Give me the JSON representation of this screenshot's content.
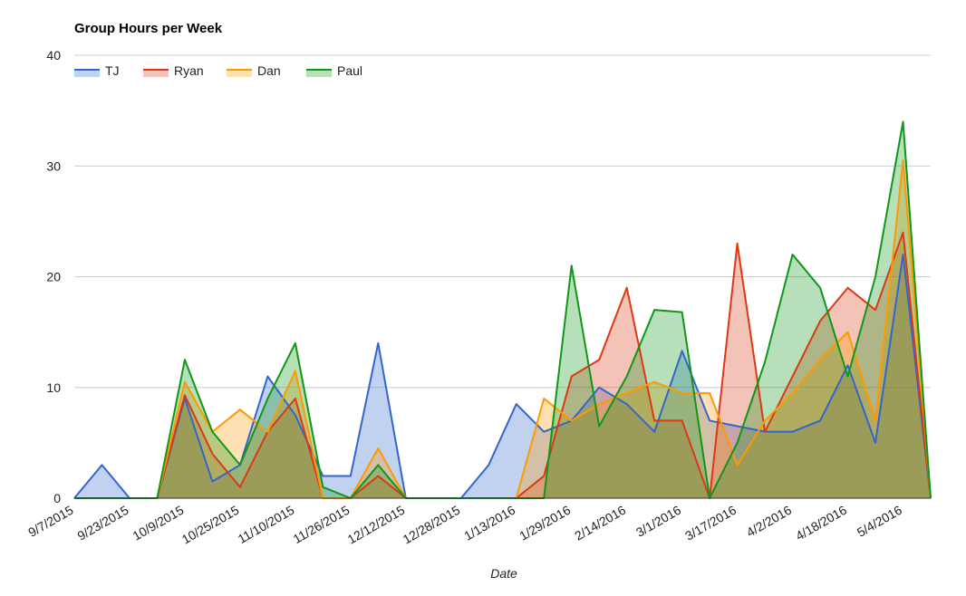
{
  "chart_data": {
    "type": "area",
    "title": "Group Hours per Week",
    "xlabel": "Date",
    "ylabel": "",
    "ylim": [
      0,
      40
    ],
    "yticks": [
      0,
      10,
      20,
      30,
      40
    ],
    "grid": true,
    "legend_position": "top-left",
    "x_tick_labels": [
      "9/7/2015",
      "9/23/2015",
      "10/9/2015",
      "10/25/2015",
      "11/10/2015",
      "11/26/2015",
      "12/12/2015",
      "12/28/2015",
      "1/13/2016",
      "1/29/2016",
      "2/14/2016",
      "3/1/2016",
      "3/17/2016",
      "4/2/2016",
      "4/18/2016",
      "5/4/2016"
    ],
    "x": [
      "9/7/2015",
      "9/15/2015",
      "9/23/2015",
      "10/1/2015",
      "10/9/2015",
      "10/17/2015",
      "10/25/2015",
      "11/2/2015",
      "11/10/2015",
      "11/18/2015",
      "11/26/2015",
      "12/4/2015",
      "12/12/2015",
      "12/20/2015",
      "12/28/2015",
      "1/5/2016",
      "1/13/2016",
      "1/21/2016",
      "1/29/2016",
      "2/6/2016",
      "2/14/2016",
      "2/22/2016",
      "3/1/2016",
      "3/9/2016",
      "3/17/2016",
      "3/25/2016",
      "4/2/2016",
      "4/10/2016",
      "4/18/2016",
      "4/26/2016",
      "5/4/2016",
      "5/12/2016"
    ],
    "series": [
      {
        "name": "TJ",
        "color": "#3366cc",
        "values": [
          0,
          3,
          0,
          0,
          9,
          1.5,
          3,
          11,
          7.5,
          2,
          2,
          14,
          0,
          0,
          0,
          3,
          8.5,
          6,
          7,
          10,
          8.5,
          6,
          13.3,
          7,
          6.5,
          6,
          6,
          7,
          12,
          5,
          22,
          0
        ]
      },
      {
        "name": "Ryan",
        "color": "#dc3912",
        "values": [
          0,
          0,
          0,
          0,
          9.3,
          4,
          1,
          6,
          9,
          0,
          0,
          2,
          0,
          0,
          0,
          0,
          0,
          2,
          11,
          12.5,
          19,
          7,
          7,
          0,
          23,
          6,
          11,
          16,
          19,
          17,
          24,
          0
        ]
      },
      {
        "name": "Dan",
        "color": "#ff9900",
        "values": [
          0,
          0,
          0,
          0,
          10.5,
          6,
          8,
          6,
          11.5,
          0,
          0,
          4.5,
          0,
          0,
          0,
          0,
          0,
          9,
          7,
          8.5,
          9.5,
          10.5,
          9.5,
          9.5,
          3,
          7,
          9.5,
          12.5,
          15,
          7,
          30.5,
          0
        ]
      },
      {
        "name": "Paul",
        "color": "#109618",
        "values": [
          0,
          0,
          0,
          0,
          12.5,
          6,
          3,
          9,
          14,
          1,
          0,
          3,
          0,
          0,
          0,
          0,
          0,
          0,
          21,
          6.5,
          11,
          17,
          16.8,
          0,
          5,
          12.3,
          22,
          19,
          11,
          20,
          34,
          0
        ]
      }
    ]
  }
}
